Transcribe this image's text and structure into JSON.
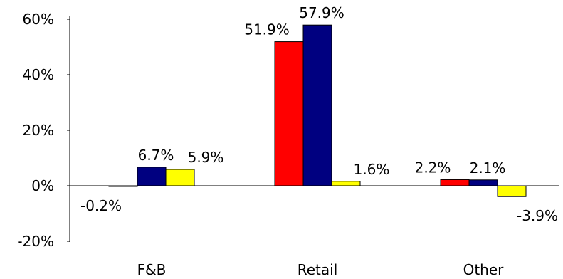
{
  "chart_data": {
    "type": "bar",
    "title": "",
    "xlabel": "",
    "ylabel": "",
    "categories": [
      "F&B",
      "Retail",
      "Other"
    ],
    "series": [
      {
        "color": "#ff0000",
        "values": [
          -0.2,
          51.9,
          2.2
        ]
      },
      {
        "color": "#000080",
        "values": [
          6.7,
          57.9,
          2.1
        ]
      },
      {
        "color": "#ffff00",
        "values": [
          5.9,
          1.6,
          -3.9
        ]
      }
    ],
    "data_labels": [
      [
        "-0.2%",
        "51.9%",
        "2.2%"
      ],
      [
        "6.7%",
        "57.9%",
        "2.1%"
      ],
      [
        "5.9%",
        "1.6%",
        "-3.9%"
      ]
    ],
    "ylim": [
      -20,
      60
    ],
    "yticks": [
      {
        "value": -20,
        "label": "-20%"
      },
      {
        "value": 0,
        "label": "0%"
      },
      {
        "value": 20,
        "label": "20%"
      },
      {
        "value": 40,
        "label": "40%"
      },
      {
        "value": 60,
        "label": "60%"
      }
    ],
    "grid": false,
    "legend": "none"
  }
}
